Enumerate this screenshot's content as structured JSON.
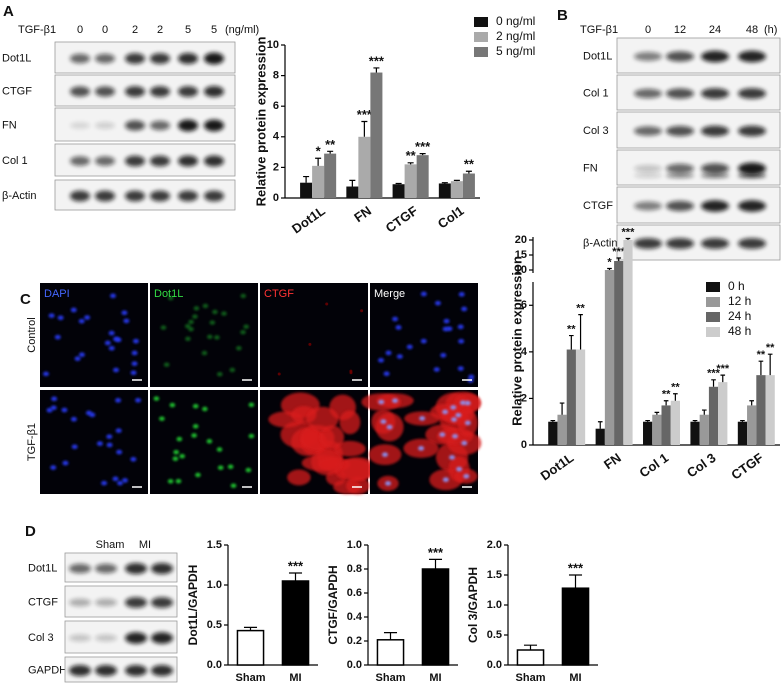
{
  "panel_letters": [
    "A",
    "B",
    "C",
    "D"
  ],
  "blot_a": {
    "treatment": "TGF-β1",
    "lanes": [
      "0",
      "0",
      "2",
      "2",
      "5",
      "5"
    ],
    "unit": "(ng/ml)",
    "rows": [
      "Dot1L",
      "CTGF",
      "FN",
      "Col 1",
      "β-Actin"
    ]
  },
  "blot_b": {
    "treatment": "TGF-β1",
    "lanes": [
      "0",
      "12",
      "24",
      "48"
    ],
    "unit": "(h)",
    "rows": [
      "Dot1L",
      "Col 1",
      "Col 3",
      "FN",
      "CTGF",
      "β-Actin"
    ]
  },
  "staining": {
    "stains": [
      "DAPI",
      "Dot1L",
      "CTGF",
      "Merge"
    ],
    "conditions": [
      "Control",
      "TGF-β1"
    ]
  },
  "blot_d": {
    "groups": [
      "Sham",
      "MI"
    ],
    "rows": [
      "Dot1L",
      "CTGF",
      "Col 3",
      "GAPDH"
    ]
  },
  "chart_data": [
    {
      "type": "bar",
      "y_label": "Relative protein expression",
      "categories": [
        "Dot1L",
        "FN",
        "CTGF",
        "Col1"
      ],
      "series": [
        {
          "name": "0 ng/ml",
          "color": "#111111",
          "values": [
            1,
            0.75,
            0.9,
            0.95
          ],
          "errors": [
            0.4,
            0.4,
            0.05,
            0.05
          ],
          "annotations": [
            null,
            null,
            null,
            null
          ]
        },
        {
          "name": "2 ng/ml",
          "color": "#aaaaaa",
          "values": [
            2.1,
            4.0,
            2.2,
            1.1
          ],
          "errors": [
            0.5,
            1.0,
            0.1,
            0.05
          ],
          "annotations": [
            "*",
            "***",
            "**",
            null
          ]
        },
        {
          "name": "5 ng/ml",
          "color": "#777777",
          "values": [
            2.9,
            8.2,
            2.8,
            1.6
          ],
          "errors": [
            0.15,
            0.3,
            0.1,
            0.15
          ],
          "annotations": [
            "**",
            "***",
            "***",
            "**"
          ]
        }
      ],
      "ylim": [
        0,
        10
      ],
      "yticks": [
        0,
        2,
        4,
        6,
        8,
        10
      ],
      "legend": "upper right"
    },
    {
      "type": "bar",
      "y_label": "Relative protein expression",
      "categories": [
        "Dot1L",
        "FN",
        "Col 1",
        "Col 3",
        "CTGF"
      ],
      "series": [
        {
          "name": "0 h",
          "color": "#111111",
          "values": [
            1,
            0.7,
            1,
            1,
            1
          ],
          "errors": [
            0.05,
            0.3,
            0.05,
            0.05,
            0.05
          ],
          "annotations": [
            null,
            null,
            null,
            null,
            null
          ]
        },
        {
          "name": "12 h",
          "color": "#999999",
          "values": [
            1.3,
            10,
            1.3,
            1.3,
            1.7
          ],
          "errors": [
            0.5,
            0.5,
            0.1,
            0.2,
            0.2
          ],
          "annotations": [
            null,
            "*",
            null,
            null,
            null
          ]
        },
        {
          "name": "24 h",
          "color": "#666666",
          "values": [
            4.1,
            13,
            1.7,
            2.5,
            3.0
          ],
          "errors": [
            0.6,
            1.0,
            0.2,
            0.3,
            0.6
          ],
          "annotations": [
            "**",
            "***",
            "**",
            "***",
            "**"
          ]
        },
        {
          "name": "48 h",
          "color": "#cccccc",
          "values": [
            4.1,
            20,
            1.9,
            2.7,
            3.0
          ],
          "errors": [
            1.5,
            0.5,
            0.3,
            0.3,
            0.9
          ],
          "annotations": [
            "**",
            "***",
            "**",
            "***",
            "**"
          ]
        }
      ],
      "ylim": [
        0,
        21
      ],
      "axis_break": [
        7,
        9
      ],
      "yticks": [
        0,
        2,
        4,
        6,
        10,
        15,
        20
      ],
      "legend": "upper right"
    },
    {
      "type": "bar",
      "y_label": "Dot1L/GAPDH",
      "categories": [
        "Sham",
        "MI"
      ],
      "values": [
        0.43,
        1.05
      ],
      "errors": [
        0.04,
        0.1
      ],
      "annotations": [
        null,
        "***"
      ],
      "colors": [
        "#ffffff",
        "#000000"
      ],
      "ylim": [
        0,
        1.5
      ],
      "yticks": [
        {
          "value": 0,
          "label": "0.0"
        },
        0.5,
        {
          "value": 1,
          "label": "1.0"
        },
        1.5
      ]
    },
    {
      "type": "bar",
      "y_label": "CTGF/GAPDH",
      "categories": [
        "Sham",
        "MI"
      ],
      "values": [
        0.21,
        0.8
      ],
      "errors": [
        0.06,
        0.08
      ],
      "annotations": [
        null,
        "***"
      ],
      "colors": [
        "#ffffff",
        "#000000"
      ],
      "ylim": [
        0,
        1
      ],
      "yticks": [
        {
          "value": 0,
          "label": "0.0"
        },
        0.2,
        0.4,
        0.6,
        0.8,
        {
          "value": 1,
          "label": "1.0"
        }
      ]
    },
    {
      "type": "bar",
      "y_label": "Col 3/GAPDH",
      "categories": [
        "Sham",
        "MI"
      ],
      "values": [
        0.25,
        1.28
      ],
      "errors": [
        0.08,
        0.22
      ],
      "annotations": [
        null,
        "***"
      ],
      "colors": [
        "#ffffff",
        "#000000"
      ],
      "ylim": [
        0,
        2
      ],
      "yticks": [
        {
          "value": 0,
          "label": "0.0"
        },
        0.5,
        {
          "value": 1,
          "label": "1.0"
        },
        1.5,
        {
          "value": 2,
          "label": "2.0"
        }
      ]
    }
  ]
}
